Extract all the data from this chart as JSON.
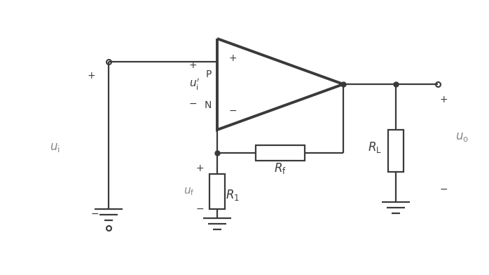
{
  "bg_color": "#ffffff",
  "line_color": "#3a3a3a",
  "line_width": 1.6,
  "fig_width": 6.98,
  "fig_height": 3.92,
  "dpi": 100
}
